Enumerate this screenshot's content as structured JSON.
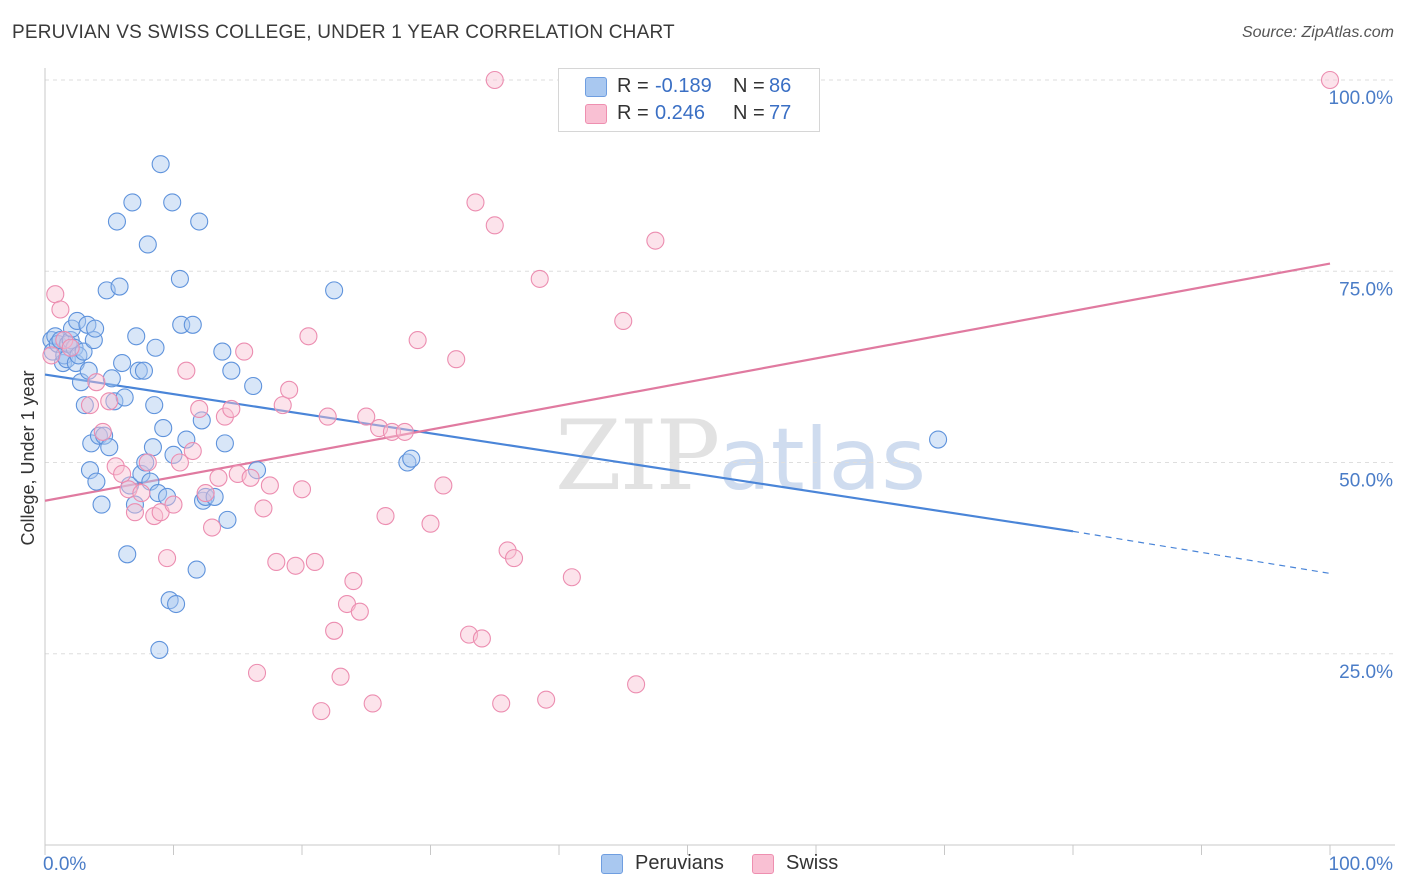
{
  "title": "PERUVIAN VS SWISS COLLEGE, UNDER 1 YEAR CORRELATION CHART",
  "source": "Source: ZipAtlas.com",
  "watermark": {
    "zip": "ZIP",
    "atlas": "atlas"
  },
  "legend": {
    "rows": [
      {
        "r_label": "R =",
        "r_value": "-0.189",
        "n_label": "N =",
        "n_value": "86",
        "color": "#a9c8f0",
        "stroke": "#6f9ee0"
      },
      {
        "r_label": "R =",
        "r_value": "0.246",
        "n_label": "N =",
        "n_value": "77",
        "color": "#f9c0d3",
        "stroke": "#ee8fb0"
      }
    ]
  },
  "bottom_legend": [
    {
      "label": "Peruvians",
      "color": "#a9c8f0",
      "stroke": "#6f9ee0"
    },
    {
      "label": "Swiss",
      "color": "#f9c0d3",
      "stroke": "#ee8fb0"
    }
  ],
  "chart_data": {
    "type": "scatter",
    "title": "PERUVIAN VS SWISS COLLEGE, UNDER 1 YEAR CORRELATION CHART",
    "xlabel": "",
    "ylabel": "College, Under 1 year",
    "xlim": [
      0,
      100
    ],
    "ylim": [
      0,
      100
    ],
    "x_tick_labels": [
      {
        "value": 0,
        "label": "0.0%"
      },
      {
        "value": 100,
        "label": "100.0%"
      }
    ],
    "y_tick_labels": [
      {
        "value": 25,
        "label": "25.0%"
      },
      {
        "value": 50,
        "label": "50.0%"
      },
      {
        "value": 75,
        "label": "75.0%"
      },
      {
        "value": 100,
        "label": "100.0%"
      }
    ],
    "series": [
      {
        "name": "Peruvians",
        "color": "#4a85d8",
        "points": [
          [
            0.5,
            66
          ],
          [
            0.6,
            64.5
          ],
          [
            0.8,
            66.5
          ],
          [
            1,
            65.5
          ],
          [
            1.2,
            66
          ],
          [
            1.4,
            63
          ],
          [
            1.5,
            64
          ],
          [
            1.7,
            63.5
          ],
          [
            1.8,
            65.5
          ],
          [
            2,
            66
          ],
          [
            2.1,
            67.5
          ],
          [
            2.3,
            65
          ],
          [
            2.4,
            63
          ],
          [
            2.5,
            68.5
          ],
          [
            2.6,
            64
          ],
          [
            2.8,
            60.5
          ],
          [
            3,
            64.5
          ],
          [
            3.1,
            57.5
          ],
          [
            3.3,
            68
          ],
          [
            3.4,
            62
          ],
          [
            3.5,
            49
          ],
          [
            3.6,
            52.5
          ],
          [
            3.8,
            66
          ],
          [
            3.9,
            67.5
          ],
          [
            4,
            47.5
          ],
          [
            4.2,
            53.5
          ],
          [
            4.4,
            44.5
          ],
          [
            4.6,
            53.5
          ],
          [
            4.8,
            72.5
          ],
          [
            5,
            52
          ],
          [
            5.2,
            61
          ],
          [
            5.4,
            58
          ],
          [
            5.6,
            81.5
          ],
          [
            5.8,
            73
          ],
          [
            6,
            63
          ],
          [
            6.2,
            58.5
          ],
          [
            6.4,
            38
          ],
          [
            6.6,
            47
          ],
          [
            6.8,
            84
          ],
          [
            7,
            44.5
          ],
          [
            7.1,
            66.5
          ],
          [
            7.3,
            62
          ],
          [
            7.5,
            48.5
          ],
          [
            7.7,
            62
          ],
          [
            7.8,
            50
          ],
          [
            8,
            78.5
          ],
          [
            8.2,
            47.5
          ],
          [
            8.4,
            52
          ],
          [
            8.5,
            57.5
          ],
          [
            8.6,
            65
          ],
          [
            8.8,
            46
          ],
          [
            8.9,
            25.5
          ],
          [
            9,
            89
          ],
          [
            9.2,
            54.5
          ],
          [
            9.5,
            45.5
          ],
          [
            9.7,
            32
          ],
          [
            9.9,
            84
          ],
          [
            10,
            51
          ],
          [
            10.2,
            31.5
          ],
          [
            10.5,
            74
          ],
          [
            10.6,
            68
          ],
          [
            11,
            53
          ],
          [
            11.5,
            68
          ],
          [
            11.8,
            36
          ],
          [
            12,
            81.5
          ],
          [
            12.2,
            55.5
          ],
          [
            12.3,
            45
          ],
          [
            12.5,
            45.5
          ],
          [
            13.2,
            45.5
          ],
          [
            13.8,
            64.5
          ],
          [
            14,
            52.5
          ],
          [
            14.2,
            42.5
          ],
          [
            14.5,
            62
          ],
          [
            16.2,
            60
          ],
          [
            16.5,
            49
          ],
          [
            22.5,
            72.5
          ],
          [
            28.2,
            50
          ],
          [
            28.5,
            50.5
          ],
          [
            69.5,
            53
          ]
        ],
        "trend": {
          "x": [
            0,
            80,
            100
          ],
          "y": [
            61.5,
            41,
            35.5
          ],
          "dashed_from": 80
        }
      },
      {
        "name": "Swiss",
        "color": "#e07aa0",
        "points": [
          [
            0.5,
            64
          ],
          [
            0.8,
            72
          ],
          [
            1.2,
            70
          ],
          [
            1.5,
            66
          ],
          [
            2,
            65
          ],
          [
            3.5,
            57.5
          ],
          [
            4,
            60.5
          ],
          [
            4.5,
            54
          ],
          [
            5,
            58
          ],
          [
            5.5,
            49.5
          ],
          [
            6,
            48.5
          ],
          [
            6.5,
            46.5
          ],
          [
            7,
            43.5
          ],
          [
            7.5,
            46
          ],
          [
            8,
            50
          ],
          [
            8.5,
            43
          ],
          [
            9,
            43.5
          ],
          [
            9.5,
            37.5
          ],
          [
            10,
            44.5
          ],
          [
            10.5,
            50
          ],
          [
            11,
            62
          ],
          [
            11.5,
            51.5
          ],
          [
            12,
            57
          ],
          [
            12.5,
            46
          ],
          [
            13,
            41.5
          ],
          [
            13.5,
            48
          ],
          [
            14,
            56
          ],
          [
            14.5,
            57
          ],
          [
            15,
            48.5
          ],
          [
            15.5,
            64.5
          ],
          [
            16,
            48
          ],
          [
            16.5,
            22.5
          ],
          [
            17,
            44
          ],
          [
            17.5,
            47
          ],
          [
            18,
            37
          ],
          [
            18.5,
            57.5
          ],
          [
            19,
            59.5
          ],
          [
            19.5,
            36.5
          ],
          [
            20,
            46.5
          ],
          [
            20.5,
            66.5
          ],
          [
            21,
            37
          ],
          [
            21.5,
            17.5
          ],
          [
            22,
            56
          ],
          [
            22.5,
            28
          ],
          [
            23,
            22
          ],
          [
            23.5,
            31.5
          ],
          [
            24,
            34.5
          ],
          [
            24.5,
            30.5
          ],
          [
            25,
            56
          ],
          [
            25.5,
            18.5
          ],
          [
            26,
            54.5
          ],
          [
            26.5,
            43
          ],
          [
            27,
            54
          ],
          [
            28,
            54
          ],
          [
            29,
            66
          ],
          [
            30,
            42
          ],
          [
            31,
            47
          ],
          [
            32,
            63.5
          ],
          [
            33,
            27.5
          ],
          [
            33.5,
            84
          ],
          [
            34,
            27
          ],
          [
            35,
            81
          ],
          [
            35.5,
            18.5
          ],
          [
            36,
            38.5
          ],
          [
            36.5,
            37.5
          ],
          [
            38.5,
            74
          ],
          [
            39,
            19
          ],
          [
            41,
            35
          ],
          [
            45,
            68.5
          ],
          [
            46,
            21
          ],
          [
            47.5,
            79
          ],
          [
            35,
            100
          ],
          [
            100,
            100
          ]
        ],
        "trend": {
          "x": [
            0,
            100
          ],
          "y": [
            45,
            76
          ]
        }
      }
    ]
  }
}
